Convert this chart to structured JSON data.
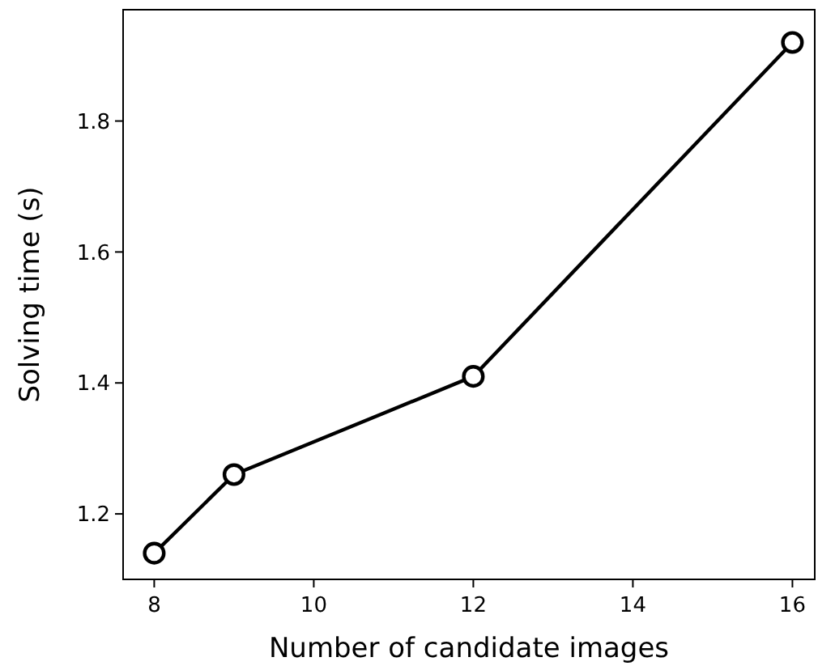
{
  "chart_data": {
    "type": "line",
    "xlabel": "Number of candidate images",
    "ylabel": "Solving time (s)",
    "x": [
      8,
      9,
      12,
      16
    ],
    "series": [
      {
        "color": "#000000",
        "values": [
          1.14,
          1.26,
          1.41,
          1.92
        ]
      }
    ],
    "xlim": [
      7.61,
      16.28
    ],
    "ylim": [
      1.1,
      1.97
    ],
    "xticks": [
      8,
      10,
      12,
      14,
      16
    ],
    "yticks": [
      1.2,
      1.4,
      1.6,
      1.8
    ],
    "marker": "circle",
    "line_style": "solid"
  }
}
